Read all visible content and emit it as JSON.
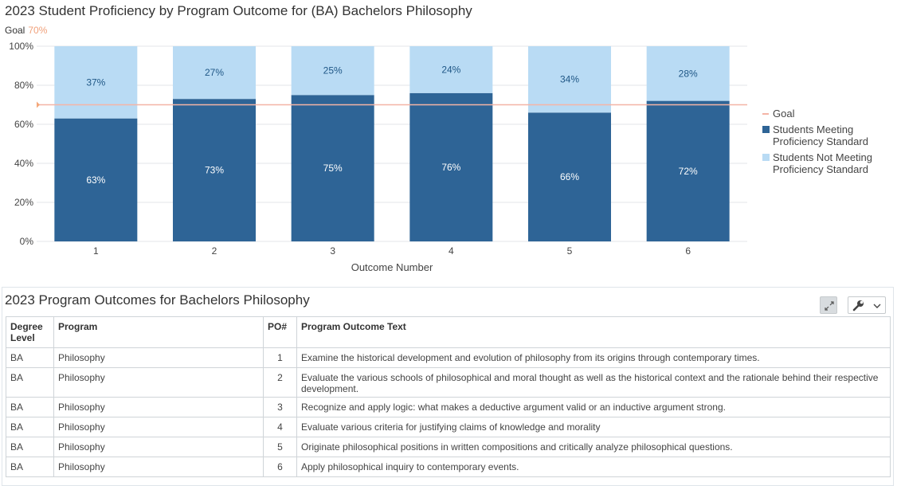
{
  "chart": {
    "title": "2023 Student Proficiency by Program Outcome for (BA) Bachelors Philosophy",
    "goal_label": "Goal",
    "goal_value_text": "70%"
  },
  "chart_data": {
    "type": "bar",
    "stacked": true,
    "categories": [
      "1",
      "2",
      "3",
      "4",
      "5",
      "6"
    ],
    "series": [
      {
        "name": "Students Meeting Proficiency Standard",
        "values": [
          63,
          73,
          75,
          76,
          66,
          72
        ],
        "labels": [
          "63%",
          "73%",
          "75%",
          "76%",
          "66%",
          "72%"
        ],
        "color": "#2e6496"
      },
      {
        "name": "Students Not Meeting Proficiency Standard",
        "values": [
          37,
          27,
          25,
          24,
          34,
          28
        ],
        "labels": [
          "37%",
          "27%",
          "25%",
          "24%",
          "34%",
          "28%"
        ],
        "color": "#b9dbf4"
      }
    ],
    "goal": {
      "name": "Goal",
      "value": 70,
      "color": "#f4b4a6"
    },
    "xlabel": "Outcome Number",
    "ylabel": "",
    "ylim": [
      0,
      100
    ],
    "yticks": [
      "0%",
      "20%",
      "40%",
      "60%",
      "80%",
      "100%"
    ],
    "grid": true,
    "legend_position": "right",
    "legend": [
      {
        "label": "Goal",
        "lines": [
          "Goal"
        ],
        "kind": "line",
        "color": "#f4b4a6"
      },
      {
        "label": "Students Meeting Proficiency Standard",
        "lines": [
          "Students Meeting",
          "Proficiency Standard"
        ],
        "kind": "box",
        "color": "#2e6496"
      },
      {
        "label": "Students Not Meeting Proficiency Standard",
        "lines": [
          "Students Not Meeting",
          "Proficiency Standard"
        ],
        "kind": "box",
        "color": "#b9dbf4"
      }
    ]
  },
  "table_panel": {
    "title": "2023 Program Outcomes for Bachelors Philosophy",
    "expand_icon": "expand-icon",
    "settings_icon": "wrench-icon",
    "dropdown_icon": "chevron-down-icon",
    "headers": {
      "degree": "Degree Level",
      "program": "Program",
      "po": "PO#",
      "text": "Program Outcome Text"
    },
    "rows": [
      {
        "degree": "BA",
        "program": "Philosophy",
        "po": "1",
        "text": "Examine the historical development and evolution of philosophy from its origins through contemporary times."
      },
      {
        "degree": "BA",
        "program": "Philosophy",
        "po": "2",
        "text": "Evaluate the various schools of philosophical and moral thought as well as the historical context and the rationale behind their respective development."
      },
      {
        "degree": "BA",
        "program": "Philosophy",
        "po": "3",
        "text": "Recognize and apply logic: what makes a deductive argument valid or an inductive argument strong."
      },
      {
        "degree": "BA",
        "program": "Philosophy",
        "po": "4",
        "text": "Evaluate various criteria for justifying claims of knowledge and morality"
      },
      {
        "degree": "BA",
        "program": "Philosophy",
        "po": "5",
        "text": "Originate philosophical positions in written compositions and critically analyze philosophical questions."
      },
      {
        "degree": "BA",
        "program": "Philosophy",
        "po": "6",
        "text": "Apply philosophical inquiry to contemporary events."
      }
    ]
  }
}
